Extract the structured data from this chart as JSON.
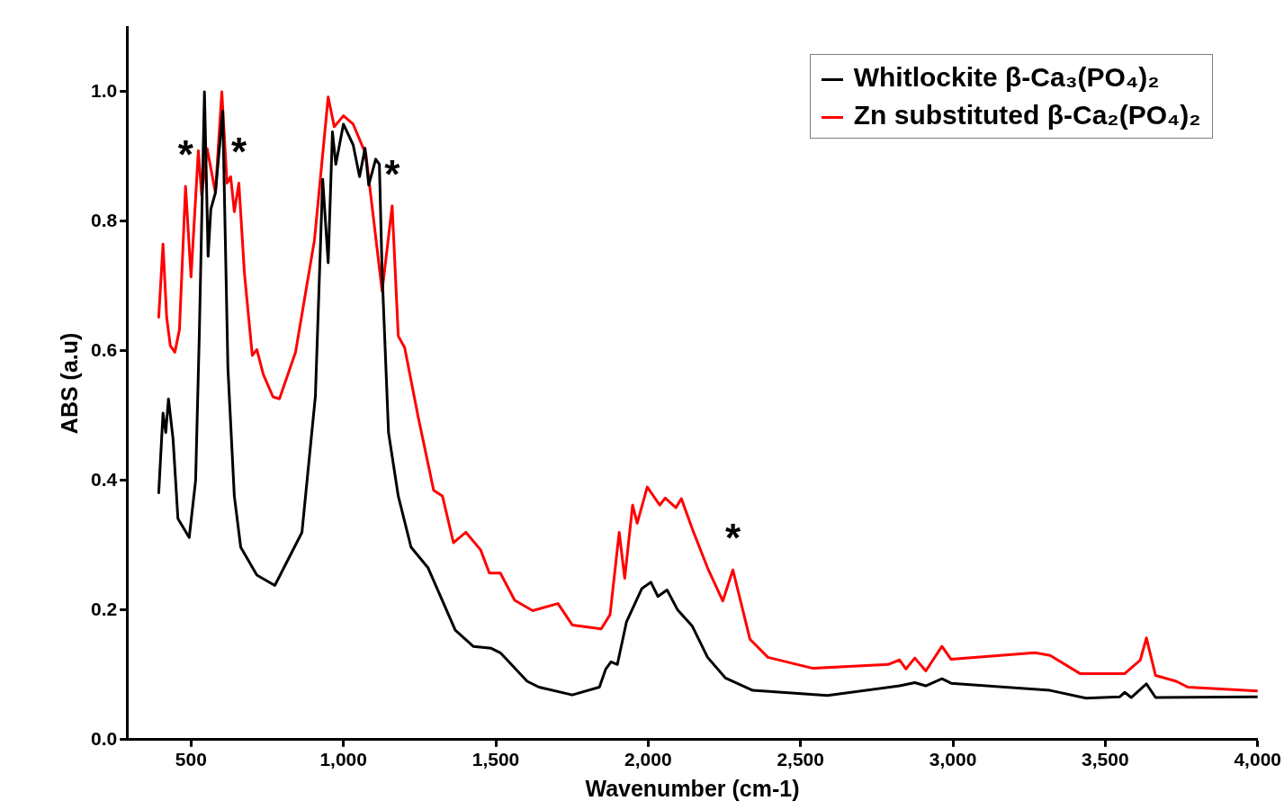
{
  "chart_data": {
    "type": "line",
    "xlabel": "Wavenumber (cm-1)",
    "ylabel": "ABS (a.u)",
    "xlim": [
      290,
      4000
    ],
    "ylim": [
      0,
      1.1
    ],
    "xticks": [
      500,
      {
        "value": 1000,
        "label": "1,000"
      },
      {
        "value": 1500,
        "label": "1,500"
      },
      {
        "value": 2000,
        "label": "2,000"
      },
      {
        "value": 2500,
        "label": "2,500"
      },
      {
        "value": 3000,
        "label": "3,000"
      },
      {
        "value": 3500,
        "label": "3,500"
      },
      {
        "value": 4000,
        "label": "4,000"
      }
    ],
    "yticks": [
      {
        "value": 0,
        "label": "0.0"
      },
      0.2,
      0.4,
      0.6,
      0.8,
      {
        "value": 1,
        "label": "1.0"
      }
    ],
    "grid": false,
    "legend": "top right",
    "marker": "none",
    "line_style": "solid",
    "annotations": [
      {
        "text": "*",
        "x": 482,
        "y": 0.854
      },
      {
        "text": "*",
        "x": 657,
        "y": 0.859
      },
      {
        "text": "*",
        "x": 1160,
        "y": 0.824
      },
      {
        "text": "*",
        "x": 2278,
        "y": 0.262
      }
    ],
    "series": [
      {
        "name": "Whitlockite β-Ca₃(PO₄)₂",
        "color": "#000000",
        "x": [
          394,
          399,
          408,
          417,
          426,
          441,
          457,
          494,
          515,
          527,
          544,
          556,
          565,
          580,
          604,
          621,
          642,
          663,
          716,
          775,
          864,
          908,
          932,
          950,
          964,
          975,
          1000,
          1032,
          1053,
          1071,
          1083,
          1106,
          1118,
          1127,
          1148,
          1180,
          1222,
          1278,
          1367,
          1426,
          1485,
          1515,
          1603,
          1642,
          1751,
          1840,
          1861,
          1878,
          1899,
          1929,
          1979,
          2009,
          2032,
          2062,
          2097,
          2145,
          2195,
          2254,
          2343,
          2588,
          2825,
          2875,
          2911,
          2964,
          2994,
          3319,
          3437,
          3547,
          3564,
          3585,
          3635,
          3665,
          4000
        ],
        "values": [
          0.381,
          0.425,
          0.504,
          0.474,
          0.526,
          0.464,
          0.341,
          0.312,
          0.4,
          0.623,
          1.0,
          0.746,
          0.819,
          0.844,
          0.97,
          0.573,
          0.376,
          0.297,
          0.254,
          0.238,
          0.32,
          0.53,
          0.865,
          0.736,
          0.938,
          0.888,
          0.95,
          0.918,
          0.869,
          0.913,
          0.856,
          0.896,
          0.888,
          0.721,
          0.474,
          0.376,
          0.297,
          0.265,
          0.169,
          0.144,
          0.141,
          0.134,
          0.09,
          0.081,
          0.069,
          0.081,
          0.109,
          0.12,
          0.116,
          0.182,
          0.233,
          0.243,
          0.221,
          0.231,
          0.2,
          0.175,
          0.127,
          0.095,
          0.076,
          0.068,
          0.083,
          0.088,
          0.083,
          0.094,
          0.087,
          0.076,
          0.064,
          0.066,
          0.073,
          0.065,
          0.086,
          0.065,
          0.066
        ]
      },
      {
        "name": "Zn substituted β-Ca₂(PO₄)₂",
        "color": "#ff0000",
        "x": [
          394,
          408,
          420,
          432,
          447,
          462,
          482,
          500,
          524,
          535,
          553,
          580,
          601,
          618,
          630,
          642,
          657,
          675,
          701,
          716,
          737,
          769,
          790,
          843,
          905,
          950,
          970,
          1000,
          1032,
          1074,
          1127,
          1160,
          1180,
          1201,
          1245,
          1296,
          1325,
          1361,
          1402,
          1450,
          1479,
          1515,
          1562,
          1621,
          1704,
          1751,
          1846,
          1875,
          1905,
          1923,
          1949,
          1964,
          1997,
          2038,
          2056,
          2091,
          2109,
          2145,
          2195,
          2245,
          2278,
          2334,
          2393,
          2541,
          2787,
          2825,
          2846,
          2875,
          2911,
          2964,
          2994,
          3269,
          3319,
          3417,
          3564,
          3615,
          3635,
          3665,
          3733,
          3771,
          4000
        ],
        "values": [
          0.652,
          0.765,
          0.652,
          0.608,
          0.598,
          0.633,
          0.854,
          0.714,
          0.909,
          0.84,
          0.912,
          0.844,
          1.0,
          0.859,
          0.869,
          0.815,
          0.859,
          0.721,
          0.593,
          0.602,
          0.564,
          0.529,
          0.526,
          0.598,
          0.771,
          0.992,
          0.946,
          0.963,
          0.95,
          0.903,
          0.692,
          0.824,
          0.623,
          0.605,
          0.499,
          0.385,
          0.376,
          0.304,
          0.32,
          0.293,
          0.257,
          0.257,
          0.215,
          0.199,
          0.21,
          0.177,
          0.171,
          0.193,
          0.32,
          0.249,
          0.362,
          0.334,
          0.39,
          0.362,
          0.373,
          0.358,
          0.372,
          0.325,
          0.265,
          0.214,
          0.262,
          0.155,
          0.127,
          0.11,
          0.116,
          0.123,
          0.109,
          0.126,
          0.106,
          0.144,
          0.124,
          0.134,
          0.13,
          0.102,
          0.102,
          0.123,
          0.157,
          0.099,
          0.09,
          0.081,
          0.075
        ]
      }
    ]
  }
}
